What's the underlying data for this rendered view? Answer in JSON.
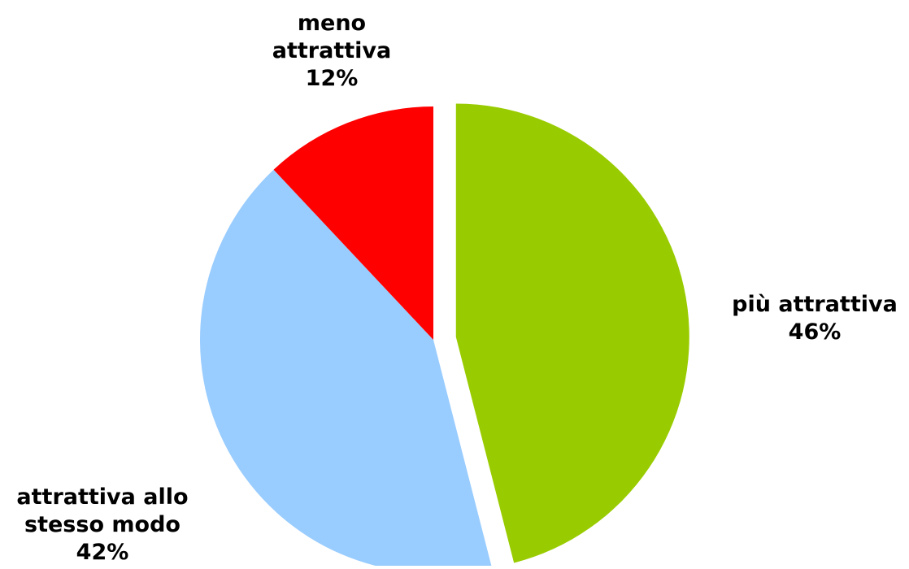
{
  "chart_data": {
    "type": "pie",
    "title": "",
    "slices": [
      {
        "label_lines": [
          "più attrattiva"
        ],
        "value": 46,
        "value_label": "46%",
        "color": "#99cc00",
        "exploded": true
      },
      {
        "label_lines": [
          "attrattiva allo",
          "stesso modo"
        ],
        "value": 42,
        "value_label": "42%",
        "color": "#99ccff",
        "exploded": false
      },
      {
        "label_lines": [
          "meno",
          "attrattiva"
        ],
        "value": 12,
        "value_label": "12%",
        "color": "#ff0000",
        "exploded": false
      }
    ],
    "start_angle": "12 o'clock",
    "direction": "clockwise",
    "legend": "none"
  }
}
